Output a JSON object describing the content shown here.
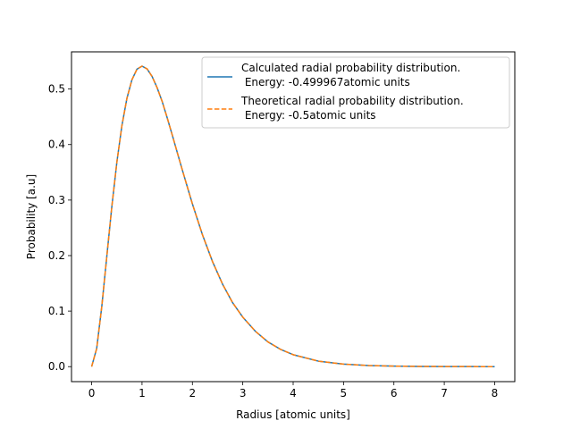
{
  "chart_data": {
    "type": "line",
    "title": "",
    "xlabel": "Radius [atomic units]",
    "ylabel": "Probability [a.u]",
    "xlim": [
      -0.4,
      8.4
    ],
    "ylim": [
      -0.027,
      0.567
    ],
    "xticks": [
      0,
      1,
      2,
      3,
      4,
      5,
      6,
      7,
      8
    ],
    "xtick_labels": [
      "0",
      "1",
      "2",
      "3",
      "4",
      "5",
      "6",
      "7",
      "8"
    ],
    "yticks": [
      0.0,
      0.1,
      0.2,
      0.3,
      0.4,
      0.5
    ],
    "ytick_labels": [
      "0.0",
      "0.1",
      "0.2",
      "0.3",
      "0.4",
      "0.5"
    ],
    "grid": false,
    "legend": "top-right",
    "series": [
      {
        "name_line1": "Calculated radial probability distribution.",
        "name_line2": " Energy: -0.499967atomic units",
        "style": "solid",
        "color": "#1f77b4",
        "x": [
          0,
          0.1,
          0.2,
          0.3,
          0.4,
          0.5,
          0.6,
          0.7,
          0.8,
          0.9,
          1.0,
          1.1,
          1.2,
          1.3,
          1.4,
          1.5,
          1.6,
          1.7,
          1.8,
          1.9,
          2.0,
          2.2,
          2.4,
          2.6,
          2.8,
          3.0,
          3.25,
          3.5,
          3.75,
          4.0,
          4.5,
          5.0,
          5.5,
          6.0,
          6.5,
          7.0,
          7.5,
          8.0
        ],
        "y": [
          0,
          0.0327,
          0.1072,
          0.1976,
          0.2876,
          0.3679,
          0.4337,
          0.4832,
          0.5168,
          0.5358,
          0.5413,
          0.5363,
          0.5226,
          0.5023,
          0.4776,
          0.4481,
          0.4172,
          0.3856,
          0.3542,
          0.3235,
          0.2931,
          0.2374,
          0.189,
          0.1483,
          0.1149,
          0.0892,
          0.0637,
          0.0445,
          0.0311,
          0.0215,
          0.0099,
          0.0045,
          0.002,
          0.0009,
          0.0004,
          0.0002,
          0.0001,
          0.0
        ]
      },
      {
        "name_line1": "Theoretical radial probability distribution.",
        "name_line2": " Energy: -0.5atomic units",
        "style": "dashed",
        "color": "#ff7f0e",
        "x": [
          0,
          0.1,
          0.2,
          0.3,
          0.4,
          0.5,
          0.6,
          0.7,
          0.8,
          0.9,
          1.0,
          1.1,
          1.2,
          1.3,
          1.4,
          1.5,
          1.6,
          1.7,
          1.8,
          1.9,
          2.0,
          2.2,
          2.4,
          2.6,
          2.8,
          3.0,
          3.25,
          3.5,
          3.75,
          4.0,
          4.5,
          5.0,
          5.5,
          6.0,
          6.5,
          7.0,
          7.5,
          8.0
        ],
        "y": [
          0,
          0.0327,
          0.1072,
          0.1976,
          0.2876,
          0.3679,
          0.4337,
          0.4832,
          0.5168,
          0.5358,
          0.5413,
          0.5363,
          0.5226,
          0.5023,
          0.4776,
          0.4481,
          0.4172,
          0.3856,
          0.3542,
          0.3235,
          0.2931,
          0.2374,
          0.189,
          0.1483,
          0.1149,
          0.0892,
          0.0637,
          0.0445,
          0.0311,
          0.0215,
          0.0099,
          0.0045,
          0.002,
          0.0009,
          0.0004,
          0.0002,
          0.0001,
          0.0
        ]
      }
    ]
  }
}
